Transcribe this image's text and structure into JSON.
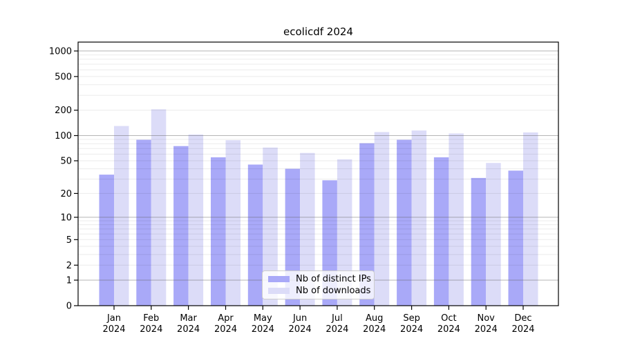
{
  "title": "ecolicdf 2024",
  "chart_data": {
    "type": "bar",
    "title": "ecolicdf 2024",
    "categories": [
      "Jan",
      "Feb",
      "Mar",
      "Apr",
      "May",
      "Jun",
      "Jul",
      "Aug",
      "Sep",
      "Oct",
      "Nov",
      "Dec"
    ],
    "xtick_second_line": "2024",
    "series": [
      {
        "name": "Nb of distinct IPs",
        "color": "#a9a9f8",
        "values": [
          34,
          89,
          75,
          55,
          45,
          40,
          29,
          81,
          89,
          55,
          31,
          38
        ]
      },
      {
        "name": "Nb of downloads",
        "color": "#dcdcf8",
        "values": [
          130,
          205,
          103,
          88,
          72,
          62,
          52,
          110,
          115,
          106,
          47,
          109
        ]
      }
    ],
    "xlabel": "",
    "ylabel": "",
    "yscale": "log10(value+1)",
    "yticks": [
      0,
      1,
      2,
      5,
      10,
      20,
      50,
      100,
      200,
      500,
      1000
    ],
    "ylim": [
      0,
      1200
    ],
    "grid": "horizontal major and minor log gridlines",
    "legend_position": "inside bottom-center"
  },
  "colors": {
    "distinct_ips_bar": "#a9a9f8",
    "downloads_bar": "#dcdcf8",
    "major_gridline": "#a6a6a6",
    "minor_gridline": "#ebebeb",
    "axis_frame": "#000000",
    "text": "#000000",
    "legend_border": "#cccccc"
  }
}
